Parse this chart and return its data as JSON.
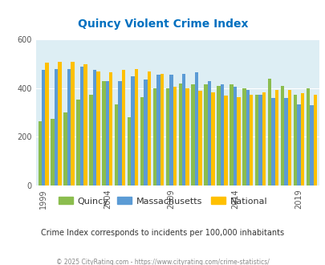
{
  "title": "Quincy Violent Crime Index",
  "years": [
    1999,
    2000,
    2001,
    2002,
    2003,
    2004,
    2005,
    2006,
    2007,
    2008,
    2009,
    2010,
    2011,
    2012,
    2013,
    2014,
    2015,
    2016,
    2017,
    2018,
    2019,
    2020
  ],
  "quincy": [
    265,
    275,
    300,
    355,
    375,
    430,
    335,
    280,
    365,
    400,
    400,
    420,
    415,
    415,
    410,
    415,
    400,
    375,
    440,
    410,
    375,
    400
  ],
  "massachusetts": [
    475,
    480,
    480,
    490,
    475,
    430,
    430,
    450,
    435,
    455,
    455,
    460,
    465,
    430,
    415,
    405,
    395,
    375,
    360,
    360,
    335,
    330
  ],
  "national": [
    505,
    510,
    510,
    500,
    470,
    465,
    475,
    480,
    470,
    460,
    405,
    400,
    390,
    385,
    370,
    365,
    375,
    385,
    395,
    395,
    380,
    375
  ],
  "quincy_color": "#8BBD4E",
  "mass_color": "#5B9BD5",
  "national_color": "#FFC000",
  "bg_color": "#DDEEF4",
  "ylim": [
    0,
    600
  ],
  "yticks": [
    0,
    200,
    400,
    600
  ],
  "title_color": "#0070C0",
  "subtitle": "Crime Index corresponds to incidents per 100,000 inhabitants",
  "footer": "© 2025 CityRating.com - https://www.cityrating.com/crime-statistics/",
  "legend_labels": [
    "Quincy",
    "Massachusetts",
    "National"
  ],
  "xtick_years": [
    1999,
    2004,
    2009,
    2014,
    2019
  ],
  "fig_width": 4.06,
  "fig_height": 3.3,
  "fig_dpi": 100
}
